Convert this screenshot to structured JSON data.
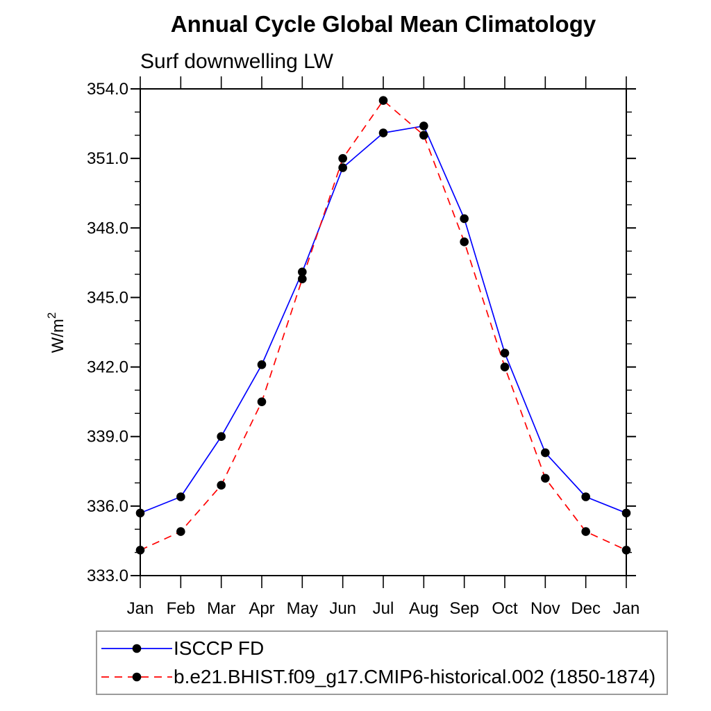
{
  "title": "Annual Cycle Global Mean Climatology",
  "subtitle": "Surf downwelling LW",
  "y_axis": {
    "label_base": "W/m",
    "label_sup": "2"
  },
  "chart_data": {
    "type": "line",
    "title": "Annual Cycle Global Mean Climatology",
    "subtitle": "Surf downwelling LW",
    "ylabel": "W/m^2",
    "xlabel": "",
    "categories": [
      "Jan",
      "Feb",
      "Mar",
      "Apr",
      "May",
      "Jun",
      "Jul",
      "Aug",
      "Sep",
      "Oct",
      "Nov",
      "Dec",
      "Jan"
    ],
    "series": [
      {
        "name": "ISCCP FD",
        "line_color": "#0000ff",
        "line_style": "solid",
        "marker": "filled-circle",
        "marker_color": "#000000",
        "values": [
          335.7,
          336.4,
          339.0,
          342.1,
          346.1,
          350.6,
          352.1,
          352.4,
          348.4,
          342.6,
          338.3,
          336.4,
          335.7
        ]
      },
      {
        "name": "b.e21.BHIST.f09_g17.CMIP6-historical.002 (1850-1874)",
        "line_color": "#ff0000",
        "line_style": "dashed",
        "marker": "filled-circle",
        "marker_color": "#000000",
        "values": [
          334.1,
          334.9,
          336.9,
          340.5,
          345.8,
          351.0,
          353.5,
          352.0,
          347.4,
          342.0,
          337.2,
          334.9,
          334.1
        ]
      }
    ],
    "ylim": [
      333.0,
      354.0
    ],
    "ytick_major_interval": 3.0,
    "ytick_minor_interval": 1.0,
    "ytick_labels": [
      "333.0",
      "336.0",
      "339.0",
      "342.0",
      "345.0",
      "348.0",
      "351.0",
      "354.0"
    ],
    "grid": false,
    "legend_position": "below-left"
  }
}
